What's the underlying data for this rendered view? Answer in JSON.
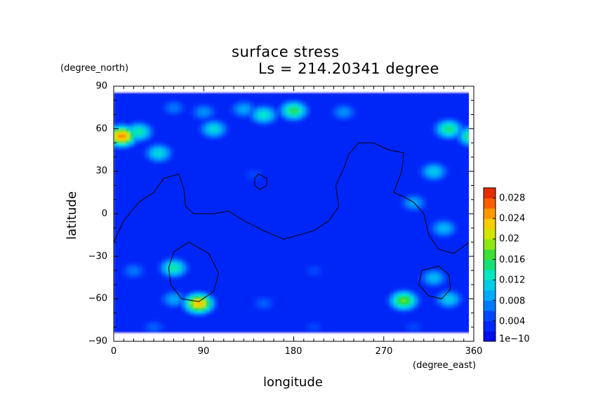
{
  "chart_data": {
    "type": "heatmap",
    "title": "surface stress",
    "subtitle": "Ls = 214.20341 degree",
    "xlabel": "longitude",
    "ylabel": "latitude",
    "x_unit": "(degree_east)",
    "y_unit": "(degree_north)",
    "xlim": [
      0,
      360
    ],
    "ylim": [
      -90,
      90
    ],
    "xticks": [
      "0",
      "90",
      "180",
      "270",
      "360"
    ],
    "yticks": [
      "90",
      "60",
      "30",
      "0",
      "−30",
      "−60",
      "−90"
    ],
    "colorbar": {
      "min": 0,
      "max": 0.03,
      "tick_labels": [
        "1e−10",
        "0.004",
        "0.008",
        "0.012",
        "0.016",
        "0.02",
        "0.024",
        "0.028"
      ],
      "tick_values": [
        0,
        0.004,
        0.008,
        0.012,
        0.016,
        0.02,
        0.024,
        0.028
      ],
      "colormap": "rainbow (blue → cyan → green → yellow → red)"
    },
    "lat_range_shown": [
      -84,
      86
    ],
    "features": [
      {
        "lon": 180,
        "lat": 73,
        "value": 0.016
      },
      {
        "lon": 150,
        "lat": 70,
        "value": 0.013
      },
      {
        "lon": 130,
        "lat": 74,
        "value": 0.009
      },
      {
        "lon": 230,
        "lat": 72,
        "value": 0.008
      },
      {
        "lon": 60,
        "lat": 75,
        "value": 0.007
      },
      {
        "lon": 90,
        "lat": 72,
        "value": 0.008
      },
      {
        "lon": 8,
        "lat": 55,
        "value": 0.026
      },
      {
        "lon": 25,
        "lat": 58,
        "value": 0.014
      },
      {
        "lon": 335,
        "lat": 60,
        "value": 0.015
      },
      {
        "lon": 358,
        "lat": 55,
        "value": 0.016
      },
      {
        "lon": 100,
        "lat": 60,
        "value": 0.012
      },
      {
        "lon": 45,
        "lat": 43,
        "value": 0.012
      },
      {
        "lon": 320,
        "lat": 30,
        "value": 0.011
      },
      {
        "lon": 300,
        "lat": 8,
        "value": 0.009
      },
      {
        "lon": 330,
        "lat": -10,
        "value": 0.01
      },
      {
        "lon": 60,
        "lat": -38,
        "value": 0.014
      },
      {
        "lon": 20,
        "lat": -40,
        "value": 0.007
      },
      {
        "lon": 85,
        "lat": -63,
        "value": 0.024
      },
      {
        "lon": 60,
        "lat": -60,
        "value": 0.009
      },
      {
        "lon": 290,
        "lat": -61,
        "value": 0.018
      },
      {
        "lon": 320,
        "lat": -45,
        "value": 0.01
      },
      {
        "lon": 335,
        "lat": -60,
        "value": 0.011
      },
      {
        "lon": 150,
        "lat": -63,
        "value": 0.006
      },
      {
        "lon": 200,
        "lat": -40,
        "value": 0.005
      },
      {
        "lon": 140,
        "lat": 28,
        "value": 0.005
      },
      {
        "lon": 40,
        "lat": -80,
        "value": 0.006
      },
      {
        "lon": 200,
        "lat": -80,
        "value": 0.005
      },
      {
        "lon": 300,
        "lat": -80,
        "value": 0.005
      }
    ],
    "background_value": 0.003,
    "contours": [
      {
        "name": "tharsis-contour",
        "closed": false,
        "points": [
          [
            0,
            -20
          ],
          [
            10,
            -5
          ],
          [
            25,
            8
          ],
          [
            40,
            15
          ],
          [
            50,
            25
          ],
          [
            65,
            28
          ],
          [
            70,
            18
          ],
          [
            72,
            5
          ],
          [
            80,
            0
          ],
          [
            100,
            0
          ],
          [
            115,
            2
          ],
          [
            130,
            -5
          ],
          [
            150,
            -12
          ],
          [
            170,
            -18
          ],
          [
            185,
            -15
          ],
          [
            200,
            -12
          ],
          [
            215,
            -5
          ],
          [
            225,
            5
          ],
          [
            222,
            20
          ],
          [
            230,
            32
          ],
          [
            235,
            42
          ],
          [
            245,
            50
          ],
          [
            260,
            50
          ],
          [
            275,
            45
          ],
          [
            290,
            43
          ],
          [
            288,
            30
          ],
          [
            280,
            15
          ],
          [
            290,
            12
          ],
          [
            300,
            8
          ],
          [
            310,
            0
          ],
          [
            315,
            -15
          ],
          [
            325,
            -25
          ],
          [
            340,
            -28
          ],
          [
            360,
            -18
          ]
        ]
      },
      {
        "name": "hellas-contour",
        "closed": true,
        "points": [
          [
            75,
            -20
          ],
          [
            95,
            -28
          ],
          [
            105,
            -42
          ],
          [
            100,
            -55
          ],
          [
            85,
            -62
          ],
          [
            68,
            -60
          ],
          [
            57,
            -50
          ],
          [
            55,
            -38
          ],
          [
            60,
            -27
          ]
        ]
      },
      {
        "name": "argyre-contour",
        "closed": true,
        "points": [
          [
            325,
            -37
          ],
          [
            335,
            -43
          ],
          [
            337,
            -53
          ],
          [
            328,
            -60
          ],
          [
            315,
            -58
          ],
          [
            305,
            -50
          ],
          [
            308,
            -40
          ]
        ]
      },
      {
        "name": "elysium-contour",
        "closed": true,
        "points": [
          [
            145,
            28
          ],
          [
            153,
            25
          ],
          [
            153,
            20
          ],
          [
            146,
            17
          ],
          [
            141,
            20
          ],
          [
            141,
            25
          ]
        ]
      }
    ]
  }
}
